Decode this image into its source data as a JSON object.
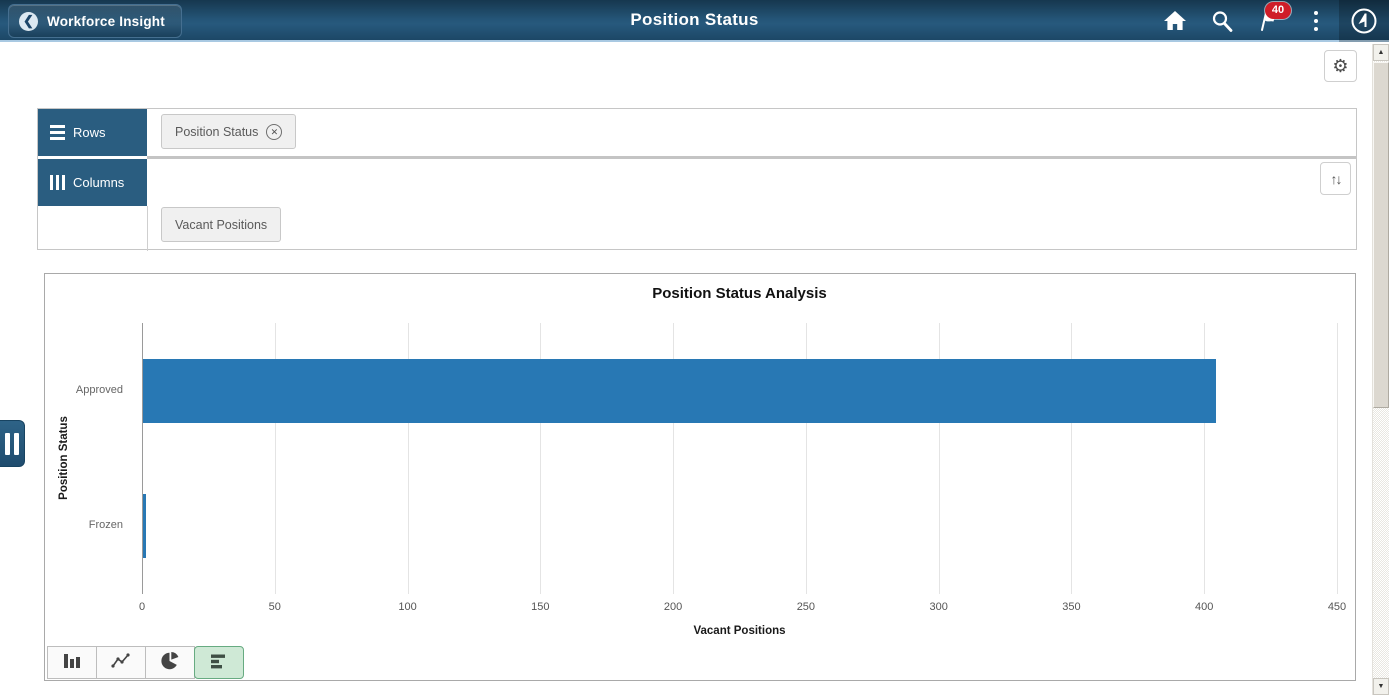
{
  "header": {
    "back_label": "Workforce Insight",
    "title": "Position Status",
    "notification_count": "40",
    "back_chevron_glyph": "❮"
  },
  "toolbar": {
    "gear_glyph": "⚙"
  },
  "pivot": {
    "rows_label": "Rows",
    "columns_label": "Columns",
    "row_chips": [
      {
        "label": "Position Status",
        "remove_glyph": "✕"
      }
    ],
    "measure_chip": "Vacant Positions",
    "sort_glyph": "↑↓"
  },
  "chart_data": {
    "type": "bar",
    "orientation": "horizontal",
    "title": "Position Status Analysis",
    "categories": [
      "Approved",
      "Frozen"
    ],
    "values": [
      404,
      1
    ],
    "xlabel": "Vacant Positions",
    "ylabel": "Position Status",
    "xlim": [
      0,
      450
    ],
    "xticks": [
      0,
      50,
      100,
      150,
      200,
      250,
      300,
      350,
      400,
      450
    ],
    "bar_color": "#2878b4",
    "grid": "vertical",
    "legend": "none"
  },
  "chart_toolbar": {
    "selected_color": "#cfe9d6",
    "buttons": [
      {
        "name": "vertical-bar-chart-button",
        "icon": "vertical-bar-icon",
        "selected": false
      },
      {
        "name": "line-chart-button",
        "icon": "line-chart-icon",
        "selected": false
      },
      {
        "name": "pie-chart-button",
        "icon": "pie-chart-icon",
        "selected": false
      },
      {
        "name": "horizontal-bar-chart-button",
        "icon": "horizontal-bar-icon",
        "selected": true
      }
    ]
  },
  "scrollbar": {
    "up_glyph": "▲",
    "down_glyph": "▼"
  }
}
